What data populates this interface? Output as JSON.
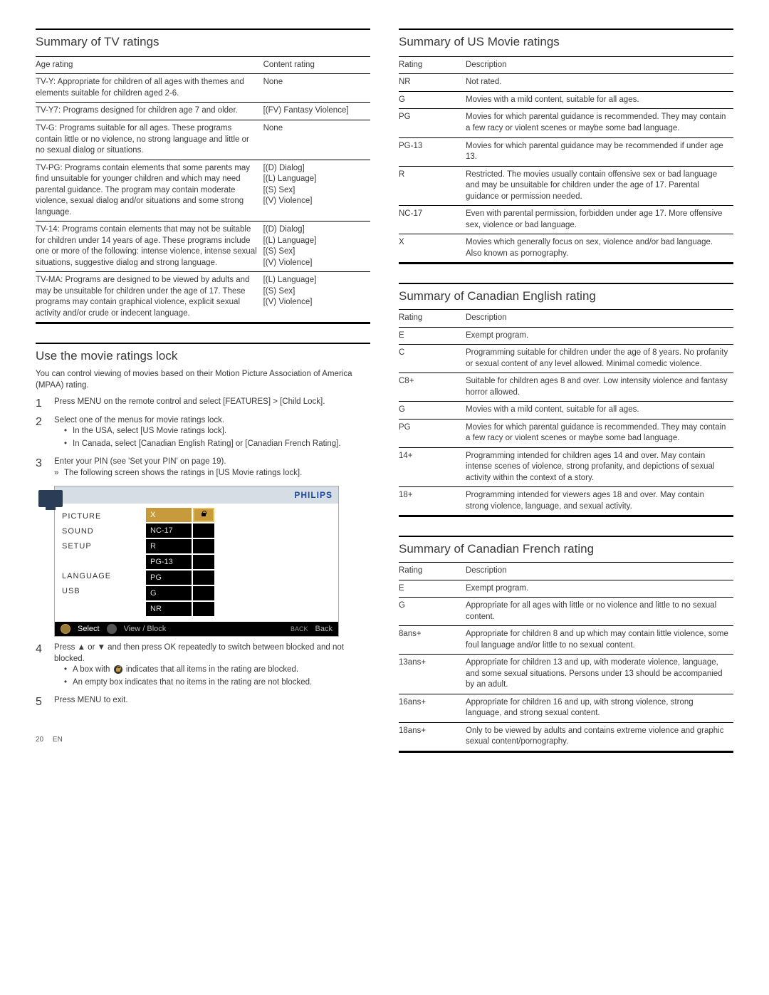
{
  "left": {
    "tv_ratings": {
      "title": "Summary of TV ratings",
      "head_age": "Age rating",
      "head_content": "Content rating",
      "rows": [
        {
          "age": "TV-Y: Appropriate for children of all ages with themes and elements suitable for children aged 2-6.",
          "content": "None"
        },
        {
          "age": "TV-Y7: Programs designed for children age 7 and older.",
          "content": "[(FV) Fantasy Violence]"
        },
        {
          "age": "TV-G: Programs suitable for all ages. These programs contain little or no violence, no strong language and little or no sexual dialog or situations.",
          "content": "None"
        },
        {
          "age": "TV-PG: Programs contain elements that some parents may find unsuitable for younger children and which may need parental guidance. The program may contain moderate violence, sexual dialog and/or situations and some strong language.",
          "content": "[(D) Dialog]\n[(L) Language]\n[(S) Sex]\n[(V) Violence]"
        },
        {
          "age": "TV-14: Programs contain elements that may not be suitable for children under 14 years of age. These programs include one or more of the following: intense violence, intense sexual situations, suggestive dialog and strong language.",
          "content": "[(D) Dialog]\n[(L) Language]\n[(S) Sex]\n[(V) Violence]"
        },
        {
          "age": "TV-MA: Programs are designed to be viewed by adults and may be unsuitable for children under the age of 17. These programs may contain graphical violence, explicit sexual activity and/or crude or indecent language.",
          "content": "[(L) Language]\n[(S) Sex]\n[(V) Violence]"
        }
      ]
    },
    "use_lock": {
      "title": "Use the movie ratings lock",
      "intro": "You can control viewing of movies based on their Motion Picture Association of America (MPAA) rating.",
      "step1": "Press MENU on the remote control and select [FEATURES] > [Child Lock].",
      "step2": "Select one of the menus for movie ratings lock.",
      "step2_b1": "In the USA, select [US Movie ratings lock].",
      "step2_b2": "In Canada, select [Canadian English Rating] or [Canadian French Rating].",
      "step3": "Enter your PIN (see 'Set your PIN' on page 19).",
      "step3_arrow": "The following screen shows the ratings in [US Movie ratings lock].",
      "step4": "Press ▲ or ▼ and then press OK repeatedly to switch between blocked and not blocked.",
      "step4_b1_a": "A box with ",
      "step4_b1_b": " indicates that all items in the rating are blocked.",
      "step4_b2": "An empty box indicates that no items in the rating are not blocked.",
      "step5": "Press MENU to exit."
    },
    "menu": {
      "brand": "PHILIPS",
      "side": [
        "PICTURE",
        "SOUND",
        "SETUP",
        "",
        "LANGUAGE",
        "USB"
      ],
      "ratings": [
        "X",
        "NC-17",
        "R",
        "PG-13",
        "PG",
        "G",
        "NR"
      ],
      "bottom_select": "Select",
      "bottom_view": "View / Block",
      "bottom_back": "Back"
    },
    "pagenum": "20",
    "pagelang": "EN"
  },
  "right": {
    "us_movie": {
      "title": "Summary of US Movie ratings",
      "head_r": "Rating",
      "head_d": "Description",
      "rows": [
        {
          "r": "NR",
          "d": "Not rated."
        },
        {
          "r": "G",
          "d": "Movies with a mild content, suitable for all ages."
        },
        {
          "r": "PG",
          "d": "Movies for which parental guidance is recommended. They may contain a few racy or violent scenes or maybe some bad language."
        },
        {
          "r": "PG-13",
          "d": "Movies for which parental guidance may be recommended if under age 13."
        },
        {
          "r": "R",
          "d": "Restricted. The movies usually contain offensive sex or bad language and may be unsuitable for children under the age of 17. Parental guidance or permission needed."
        },
        {
          "r": "NC-17",
          "d": "Even with parental permission, forbidden under age 17. More offensive sex, violence or bad language."
        },
        {
          "r": "X",
          "d": "Movies which generally focus on sex, violence and/or bad language. Also known as pornography."
        }
      ]
    },
    "can_en": {
      "title": "Summary of Canadian English rating",
      "head_r": "Rating",
      "head_d": "Description",
      "rows": [
        {
          "r": "E",
          "d": "Exempt program."
        },
        {
          "r": "C",
          "d": "Programming suitable for children under the age of 8 years. No profanity or sexual content of any level allowed. Minimal comedic violence."
        },
        {
          "r": "C8+",
          "d": "Suitable for children ages 8 and over. Low intensity violence and fantasy horror allowed."
        },
        {
          "r": "G",
          "d": "Movies with a mild content, suitable for all ages."
        },
        {
          "r": "PG",
          "d": "Movies for which parental guidance is recommended. They may contain a few racy or violent scenes or maybe some bad language."
        },
        {
          "r": "14+",
          "d": "Programming intended for children ages 14 and over. May contain intense scenes of violence, strong profanity, and depictions of sexual activity within the context of a story."
        },
        {
          "r": "18+",
          "d": "Programming intended for viewers ages 18 and over. May contain strong violence, language, and sexual activity."
        }
      ]
    },
    "can_fr": {
      "title": "Summary of Canadian French rating",
      "head_r": "Rating",
      "head_d": "Description",
      "rows": [
        {
          "r": "E",
          "d": "Exempt program."
        },
        {
          "r": "G",
          "d": "Appropriate for all ages with little or no violence and little to no sexual content."
        },
        {
          "r": "8ans+",
          "d": "Appropriate for children 8 and up which may contain little violence, some foul language and/or little to no sexual content."
        },
        {
          "r": "13ans+",
          "d": "Appropriate for children 13 and up, with moderate violence, language, and some sexual situations. Persons under 13 should be accompanied by an adult."
        },
        {
          "r": "16ans+",
          "d": "Appropriate for children 16 and up, with strong violence, strong language, and strong sexual content."
        },
        {
          "r": "18ans+",
          "d": "Only to be viewed by adults and contains extreme violence and graphic sexual content/pornography."
        }
      ]
    }
  }
}
